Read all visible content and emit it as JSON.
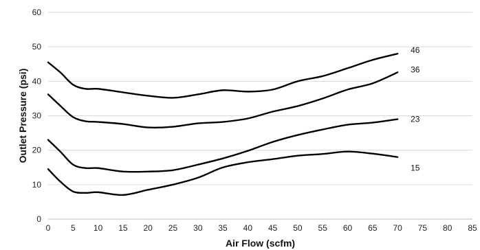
{
  "chart_data": {
    "type": "line",
    "xlabel": "Air Flow (scfm)",
    "ylabel": "Outlet Pressure (psi)",
    "xlim": [
      0,
      85
    ],
    "ylim": [
      0,
      60
    ],
    "xticks": [
      0,
      5,
      10,
      15,
      20,
      25,
      30,
      35,
      40,
      45,
      50,
      55,
      60,
      65,
      70,
      75,
      80,
      85
    ],
    "yticks": [
      0,
      10,
      20,
      30,
      40,
      50,
      60
    ],
    "grid": "horizontal",
    "legend": "none",
    "series": [
      {
        "name": "46",
        "x": [
          0,
          2.5,
          5,
          7.5,
          10,
          15,
          20,
          25,
          30,
          35,
          40,
          45,
          50,
          55,
          60,
          65,
          70
        ],
        "y": [
          45.5,
          42.5,
          39.0,
          37.8,
          37.8,
          36.8,
          35.8,
          35.2,
          36.2,
          37.4,
          37.0,
          37.6,
          40.0,
          41.5,
          43.8,
          46.2,
          48.0
        ]
      },
      {
        "name": "36",
        "x": [
          0,
          2.5,
          5,
          7.5,
          10,
          15,
          20,
          25,
          30,
          35,
          40,
          45,
          50,
          55,
          60,
          65,
          70
        ],
        "y": [
          36.2,
          32.8,
          29.6,
          28.4,
          28.2,
          27.6,
          26.6,
          26.8,
          27.8,
          28.2,
          29.2,
          31.2,
          32.8,
          35.0,
          37.6,
          39.4,
          42.6
        ]
      },
      {
        "name": "23",
        "x": [
          0,
          2.5,
          5,
          7.5,
          10,
          15,
          20,
          25,
          30,
          35,
          40,
          45,
          50,
          55,
          60,
          65,
          70
        ],
        "y": [
          23.0,
          19.5,
          15.8,
          14.8,
          14.8,
          13.8,
          13.8,
          14.2,
          15.8,
          17.6,
          19.8,
          22.4,
          24.4,
          26.0,
          27.4,
          28.0,
          29.0
        ]
      },
      {
        "name": "15",
        "x": [
          0,
          2.5,
          5,
          7.5,
          10,
          15,
          20,
          25,
          30,
          35,
          40,
          45,
          50,
          55,
          60,
          65,
          70
        ],
        "y": [
          14.5,
          10.8,
          8.0,
          7.6,
          7.8,
          7.0,
          8.5,
          10.0,
          12.0,
          15.0,
          16.5,
          17.4,
          18.4,
          18.9,
          19.6,
          19.0,
          18.0
        ]
      }
    ]
  }
}
